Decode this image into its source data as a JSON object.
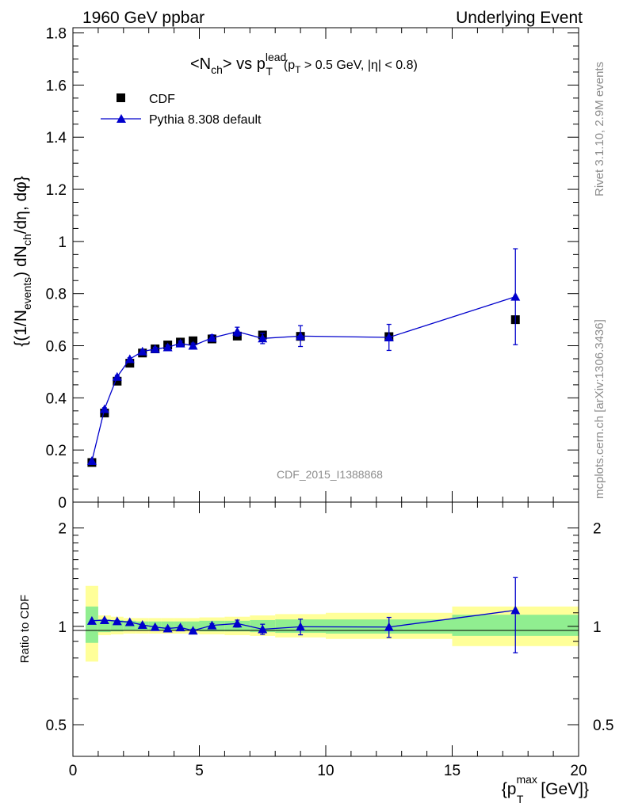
{
  "header": {
    "left": "1960 GeV ppbar",
    "right": "Underlying Event"
  },
  "side_text": {
    "rivet": "Rivet 3.1.10,  2.9M events",
    "mcplots": "mcplots.cern.ch [arXiv:1306.3436]"
  },
  "colors": {
    "mc": "#0000cc",
    "data": "#000000",
    "band_inner": "#90ee90",
    "band_outer": "#ffff99"
  },
  "chart_data": [
    {
      "type": "scatter",
      "title": "<N_ch> vs p_T^lead (p_T > 0.5 GeV, |η| < 0.8)",
      "ylabel": "{(1/N_events) dN_ch/dη, dφ}",
      "xlim": [
        0,
        20
      ],
      "ylim": [
        0,
        1.82
      ],
      "yticks": [
        "0",
        "0.2",
        "0.4",
        "0.6",
        "0.8",
        "1",
        "1.2",
        "1.4",
        "1.6",
        "1.8"
      ],
      "legend_position": "top-left",
      "annotation": "CDF_2015_I1388868",
      "series": [
        {
          "name": "CDF",
          "marker": "square",
          "x": [
            0.75,
            1.25,
            1.75,
            2.25,
            2.75,
            3.25,
            3.75,
            4.25,
            4.75,
            5.5,
            6.5,
            7.5,
            9.0,
            12.5,
            17.5
          ],
          "y": [
            0.152,
            0.342,
            0.464,
            0.533,
            0.572,
            0.588,
            0.603,
            0.614,
            0.619,
            0.626,
            0.637,
            0.641,
            0.636,
            0.635,
            0.7
          ]
        },
        {
          "name": "Pythia 8.308 default",
          "marker": "triangle",
          "x": [
            0.75,
            1.25,
            1.75,
            2.25,
            2.75,
            3.25,
            3.75,
            4.25,
            4.75,
            5.5,
            6.5,
            7.5,
            9.0,
            12.5,
            17.5
          ],
          "y": [
            0.158,
            0.357,
            0.481,
            0.549,
            0.578,
            0.587,
            0.594,
            0.609,
            0.6,
            0.63,
            0.654,
            0.628,
            0.637,
            0.632,
            0.788
          ],
          "err": [
            0,
            0.005,
            0.005,
            0.005,
            0.006,
            0.007,
            0.008,
            0.009,
            0.01,
            0.012,
            0.017,
            0.02,
            0.04,
            0.05,
            0.184
          ]
        }
      ]
    },
    {
      "type": "scatter",
      "ylabel": "Ratio to CDF",
      "xlabel": "{p_T^max [GeV]}",
      "xlim": [
        0,
        20
      ],
      "ylim": [
        0.4,
        2.4
      ],
      "log_y": true,
      "xticks": [
        "0",
        "5",
        "10",
        "15",
        "20"
      ],
      "yticks": [
        "0.5",
        "1",
        "2"
      ],
      "bands": [
        {
          "x0": 0.5,
          "x1": 1.0,
          "inner": [
            0.89,
            1.15
          ],
          "outer": [
            0.78,
            1.33
          ]
        },
        {
          "x0": 1.0,
          "x1": 1.5,
          "inner": [
            0.96,
            1.05
          ],
          "outer": [
            0.94,
            1.08
          ]
        },
        {
          "x0": 1.5,
          "x1": 2.0,
          "inner": [
            0.965,
            1.045
          ],
          "outer": [
            0.945,
            1.07
          ]
        },
        {
          "x0": 2.0,
          "x1": 2.5,
          "inner": [
            0.97,
            1.04
          ],
          "outer": [
            0.95,
            1.06
          ]
        },
        {
          "x0": 2.5,
          "x1": 3.0,
          "inner": [
            0.97,
            1.035
          ],
          "outer": [
            0.95,
            1.06
          ]
        },
        {
          "x0": 3.0,
          "x1": 3.5,
          "inner": [
            0.97,
            1.035
          ],
          "outer": [
            0.95,
            1.06
          ]
        },
        {
          "x0": 3.5,
          "x1": 4.0,
          "inner": [
            0.97,
            1.035
          ],
          "outer": [
            0.95,
            1.06
          ]
        },
        {
          "x0": 4.0,
          "x1": 4.5,
          "inner": [
            0.97,
            1.035
          ],
          "outer": [
            0.95,
            1.06
          ]
        },
        {
          "x0": 4.5,
          "x1": 5.0,
          "inner": [
            0.97,
            1.035
          ],
          "outer": [
            0.95,
            1.06
          ]
        },
        {
          "x0": 5.0,
          "x1": 6.0,
          "inner": [
            0.965,
            1.04
          ],
          "outer": [
            0.945,
            1.065
          ]
        },
        {
          "x0": 6.0,
          "x1": 7.0,
          "inner": [
            0.965,
            1.04
          ],
          "outer": [
            0.94,
            1.07
          ]
        },
        {
          "x0": 7.0,
          "x1": 8.0,
          "inner": [
            0.96,
            1.045
          ],
          "outer": [
            0.935,
            1.08
          ]
        },
        {
          "x0": 8.0,
          "x1": 10.0,
          "inner": [
            0.955,
            1.05
          ],
          "outer": [
            0.925,
            1.09
          ]
        },
        {
          "x0": 10.0,
          "x1": 15.0,
          "inner": [
            0.95,
            1.05
          ],
          "outer": [
            0.915,
            1.1
          ]
        },
        {
          "x0": 15.0,
          "x1": 20.0,
          "inner": [
            0.935,
            1.085
          ],
          "outer": [
            0.87,
            1.15
          ]
        }
      ],
      "series": [
        {
          "name": "Pythia 8.308 default",
          "marker": "triangle",
          "x": [
            0.75,
            1.25,
            1.75,
            2.25,
            2.75,
            3.25,
            3.75,
            4.25,
            4.75,
            5.5,
            6.5,
            7.5,
            9.0,
            12.5,
            17.5
          ],
          "y": [
            1.04,
            1.045,
            1.037,
            1.03,
            1.01,
            0.995,
            0.985,
            0.993,
            0.97,
            1.007,
            1.02,
            0.98,
            0.997,
            0.995,
            1.12
          ],
          "err": [
            0,
            0.005,
            0.005,
            0.005,
            0.006,
            0.007,
            0.008,
            0.009,
            0.01,
            0.012,
            0.025,
            0.035,
            0.055,
            0.07,
            0.29
          ]
        }
      ]
    }
  ]
}
